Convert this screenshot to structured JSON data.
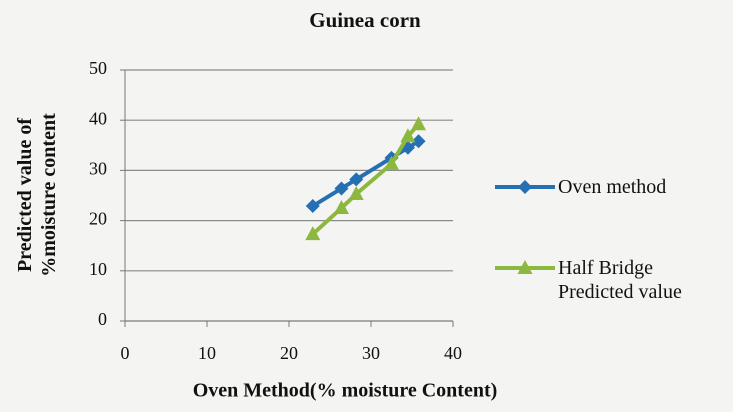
{
  "chart_data": {
    "type": "line",
    "title": "Guinea corn",
    "x_label": "Oven Method(% moisture Content)",
    "y_label": "Predicted value of %moisture content",
    "x": [
      22.9,
      26.4,
      28.2,
      32.5,
      34.5,
      35.8
    ],
    "series": [
      {
        "name": "Oven method",
        "color": "#2470b3",
        "marker": "diamond",
        "values": [
          22.9,
          26.4,
          28.2,
          32.5,
          34.5,
          35.8
        ]
      },
      {
        "name": "Half Bridge Predicted value",
        "color": "#8cb83f",
        "marker": "triangle",
        "values": [
          17.3,
          22.5,
          25.3,
          31.3,
          36.8,
          39.2
        ]
      }
    ],
    "xlim": [
      0,
      40
    ],
    "xticks": [
      0,
      10,
      20,
      30,
      40
    ],
    "ylim": [
      0,
      50
    ],
    "yticks": [
      0,
      10,
      20,
      30,
      40,
      50
    ],
    "grid": true,
    "legend": "right"
  }
}
